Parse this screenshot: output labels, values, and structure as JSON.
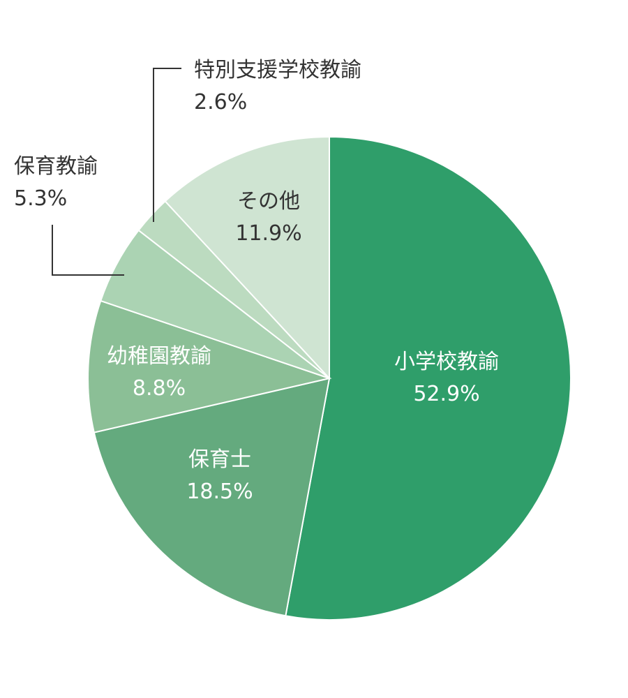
{
  "chart_data": {
    "type": "pie",
    "slices": [
      {
        "label": "小学校教諭",
        "value": 52.9,
        "value_label": "52.9%",
        "color": "#2f9e6a",
        "text_color": "#ffffff"
      },
      {
        "label": "保育士",
        "value": 18.5,
        "value_label": "18.5%",
        "color": "#64aa7e",
        "text_color": "#ffffff"
      },
      {
        "label": "幼稚園教諭",
        "value": 8.8,
        "value_label": "8.8%",
        "color": "#8bbf96",
        "text_color": "#ffffff"
      },
      {
        "label": "保育教諭",
        "value": 5.3,
        "value_label": "5.3%",
        "color": "#abd3b3",
        "text_color": "#333333"
      },
      {
        "label": "特別支援学校教諭",
        "value": 2.6,
        "value_label": "2.6%",
        "color": "#bcdbc0",
        "text_color": "#333333"
      },
      {
        "label": "その他",
        "value": 11.9,
        "value_label": "11.9%",
        "color": "#cfe4d2",
        "text_color": "#333333"
      }
    ],
    "start": "12 o'clock",
    "direction": "clockwise"
  },
  "colors": {
    "separator": "#ffffff",
    "leader_line": "#333333"
  }
}
